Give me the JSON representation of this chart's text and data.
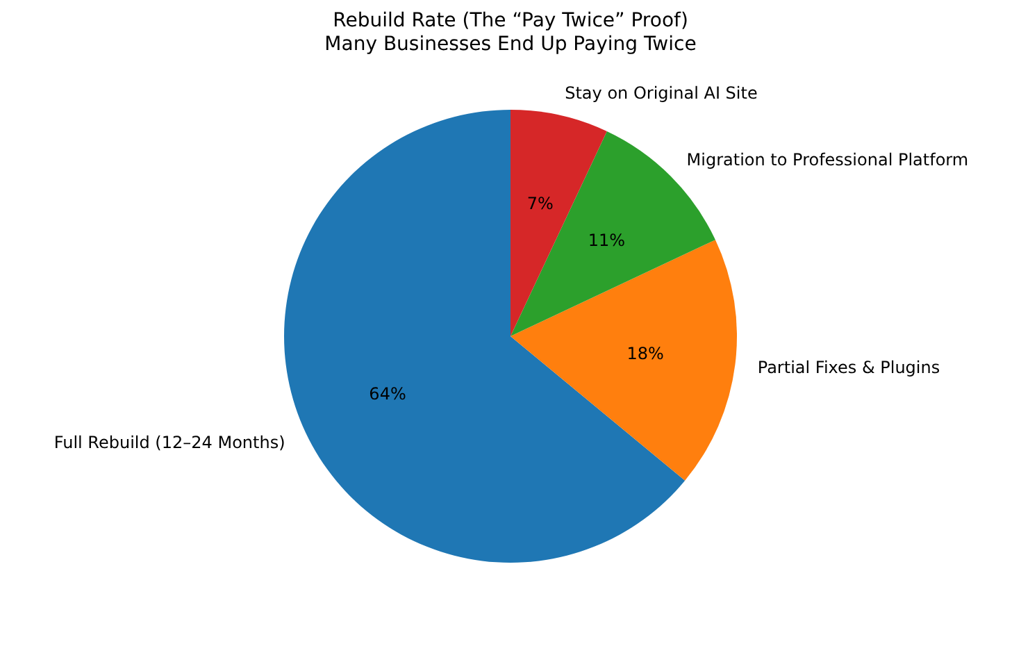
{
  "chart_data": {
    "type": "pie",
    "title": "Rebuild Rate (The “Pay Twice” Proof)",
    "subtitle": "Many Businesses End Up Paying Twice",
    "categories": [
      "Full Rebuild (12–24 Months)",
      "Partial Fixes & Plugins",
      "Migration to Professional Platform",
      "Stay on Original AI Site"
    ],
    "values": [
      64,
      18,
      11,
      7
    ],
    "colors": [
      "#1f77b4",
      "#ff7f0e",
      "#2ca02c",
      "#d62728"
    ],
    "value_labels": [
      "64%",
      "18%",
      "11%",
      "7%"
    ],
    "legend": false
  }
}
